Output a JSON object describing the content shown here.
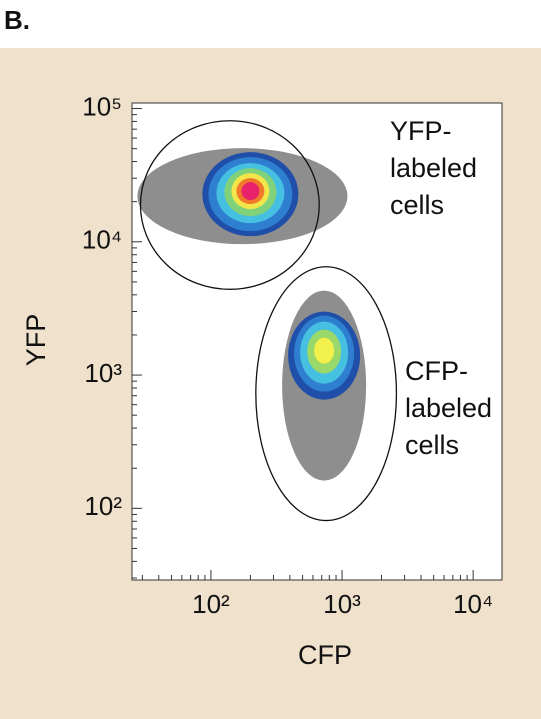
{
  "panel_label": "B.",
  "chart_data": {
    "type": "density",
    "xlabel": "CFP",
    "ylabel": "YFP",
    "xscale": "log",
    "yscale": "log",
    "xlim": [
      25,
      16600
    ],
    "ylim": [
      29,
      110000
    ],
    "xticks": [
      {
        "value": 100,
        "label": "10²"
      },
      {
        "value": 1000,
        "label": "10³"
      },
      {
        "value": 10000,
        "label": "10⁴"
      }
    ],
    "yticks": [
      {
        "value": 100,
        "label": "10²"
      },
      {
        "value": 1000,
        "label": "10³"
      },
      {
        "value": 10000,
        "label": "10⁴"
      },
      {
        "value": 100000,
        "label": "10⁵"
      }
    ],
    "populations": [
      {
        "name": [
          "YFP-",
          "labeled",
          "cells"
        ],
        "x": 200,
        "y": 22000,
        "gate_x": [
          29,
          670
        ],
        "gate_y": [
          4400,
          81000
        ],
        "colors": [
          "#7a7a7a",
          "#1f4fa8",
          "#2f7fd0",
          "#45c0e0",
          "#7fd27a",
          "#f2e64a",
          "#f07a2a",
          "#e8226a"
        ]
      },
      {
        "name": [
          "CFP-",
          "labeled",
          "cells"
        ],
        "x": 730,
        "y": 1400,
        "gate_x": [
          220,
          2600
        ],
        "gate_y": [
          81,
          6500
        ],
        "colors": [
          "#7a7a7a",
          "#1f4fa8",
          "#2f7fd0",
          "#45c0e0",
          "#9ad86a",
          "#f2f04a"
        ]
      }
    ]
  }
}
